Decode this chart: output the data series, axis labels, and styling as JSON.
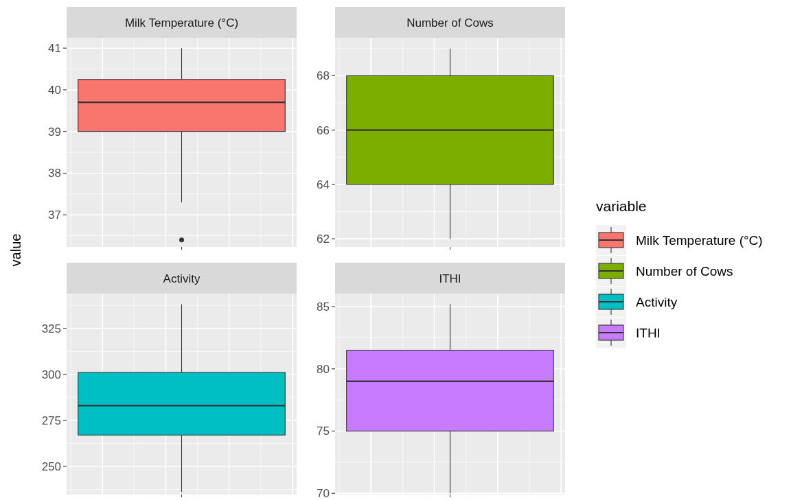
{
  "chart_data": [
    {
      "type": "box",
      "title": "Milk Temperature (°C)",
      "ylabel": "value",
      "categories": [
        null
      ],
      "legend": "right",
      "legend_title": "variable",
      "grid": true,
      "tick_labels": "y",
      "ylim": [
        36.23,
        41.25
      ],
      "yticks": [
        37,
        38,
        39,
        40,
        41
      ],
      "series": [
        {
          "name": "Milk Temperature (°C)",
          "color": "#f8766d",
          "boxes": [
            {
              "low": 37.3,
              "q1": 39,
              "median": 39.7,
              "q3": 40.25,
              "high": 41,
              "outliers": [
                36.4
              ]
            }
          ]
        }
      ]
    },
    {
      "type": "box",
      "title": "Number of Cows",
      "categories": [
        null
      ],
      "legend": "right",
      "grid": true,
      "tick_labels": "y",
      "ylim": [
        61.7,
        69.4
      ],
      "yticks": [
        62,
        64,
        66,
        68
      ],
      "series": [
        {
          "name": "Number of Cows",
          "color": "#7cae00",
          "boxes": [
            {
              "low": 62,
              "q1": 64,
              "median": 66,
              "q3": 68,
              "high": 69
            }
          ]
        }
      ]
    },
    {
      "type": "box",
      "title": "Activity",
      "categories": [
        null
      ],
      "legend": "right",
      "grid": true,
      "tick_labels": "y",
      "ylim": [
        234.7,
        343.9
      ],
      "yticks": [
        250,
        275,
        300,
        325
      ],
      "series": [
        {
          "name": "Activity",
          "color": "#00bfc4",
          "boxes": [
            {
              "low": 236,
              "q1": 267,
              "median": 283,
              "q3": 301,
              "high": 338
            }
          ]
        }
      ]
    },
    {
      "type": "box",
      "title": "ITHI",
      "categories": [
        null
      ],
      "legend": "right",
      "grid": true,
      "tick_labels": "y",
      "ylim": [
        69.9,
        86.05
      ],
      "yticks": [
        70,
        75,
        80,
        85
      ],
      "series": [
        {
          "name": "ITHI",
          "color": "#c77cff",
          "boxes": [
            {
              "low": 70,
              "q1": 75,
              "median": 79,
              "q3": 81.5,
              "high": 85.2
            }
          ]
        }
      ]
    }
  ]
}
